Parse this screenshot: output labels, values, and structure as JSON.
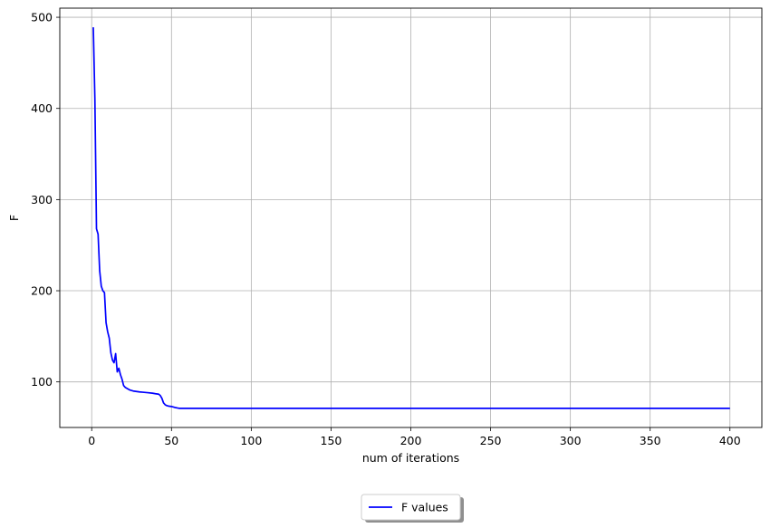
{
  "chart_data": {
    "type": "line",
    "title": "",
    "xlabel": "num of iterations",
    "ylabel": "F",
    "xlim": [
      -20,
      420
    ],
    "ylim": [
      50,
      510
    ],
    "x_ticks": [
      0,
      50,
      100,
      150,
      200,
      250,
      300,
      350,
      400
    ],
    "y_ticks": [
      100,
      200,
      300,
      400,
      500
    ],
    "grid": true,
    "legend": {
      "placement": "bottom-center-outside",
      "entries": [
        "F values"
      ]
    },
    "colors": {
      "line": "#0000ff",
      "grid": "#b0b0b0",
      "axes": "#000000"
    },
    "series": [
      {
        "name": "F values",
        "x": [
          1,
          2,
          3,
          4,
          5,
          6,
          7,
          8,
          9,
          10,
          11,
          12,
          13,
          14,
          15,
          16,
          17,
          18,
          19,
          20,
          21,
          22,
          24,
          26,
          28,
          30,
          32,
          35,
          38,
          40,
          42,
          43,
          44,
          45,
          46,
          47,
          48,
          50,
          52,
          54,
          55,
          56,
          58,
          60,
          70,
          100,
          150,
          200,
          250,
          300,
          350,
          400
        ],
        "y": [
          489,
          410,
          268,
          262,
          222,
          205,
          200,
          198,
          165,
          155,
          148,
          132,
          124,
          121,
          131,
          111,
          115,
          108,
          103,
          96,
          94,
          93,
          91,
          90,
          89.5,
          89,
          88.7,
          88.2,
          87.6,
          87,
          86.5,
          85,
          82,
          77,
          75,
          74,
          73.5,
          73,
          72,
          71.3,
          71,
          71,
          71,
          71,
          71,
          71,
          71,
          71,
          71,
          71,
          71,
          71
        ]
      }
    ]
  }
}
